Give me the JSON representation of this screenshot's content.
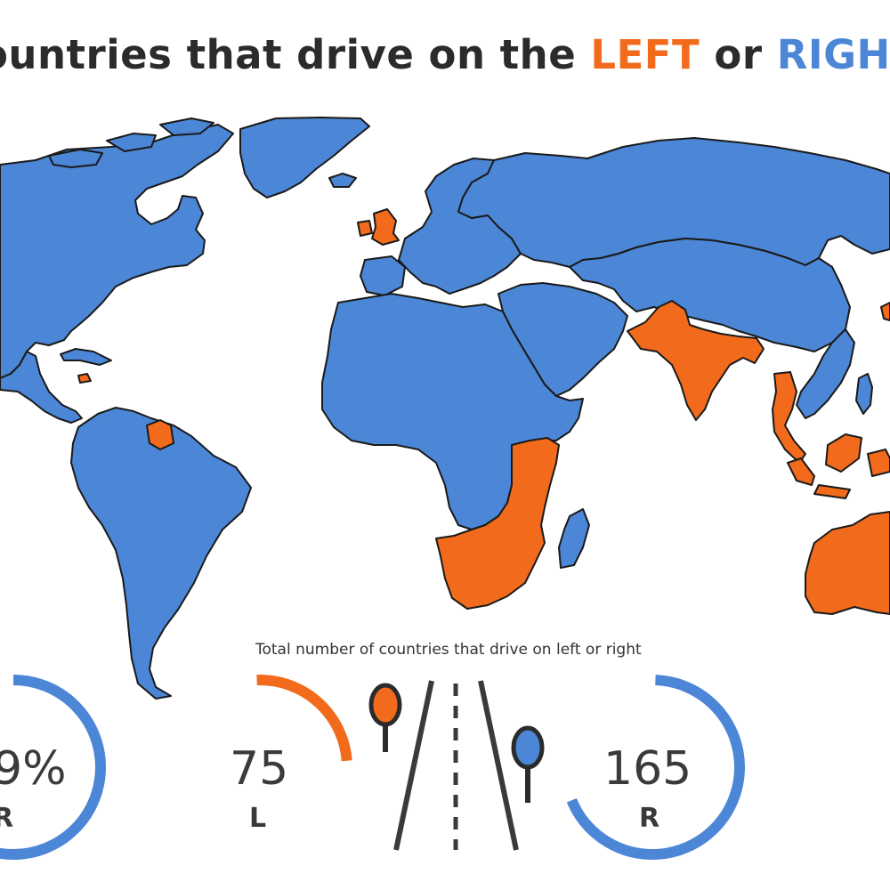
{
  "title": {
    "prefix": "ountries that drive on the ",
    "left_word": "LEFT",
    "middle": " or ",
    "right_word": "RIGH"
  },
  "colors": {
    "left": "#f26a1b",
    "right": "#4c86d6",
    "text": "#2b2b2b"
  },
  "stats": {
    "caption": "Total number of countries that drive on left or right",
    "right_percent_text": "9%",
    "right_percent_label": "R",
    "left_count": "75",
    "left_label": "L",
    "right_count": "165",
    "right_label": "R",
    "left_share": 0.31,
    "right_share": 0.69
  },
  "map": {
    "legend_meaning": {
      "left": "drive on left",
      "right": "drive on right"
    },
    "left_regions": [
      "United Kingdom",
      "Ireland",
      "India",
      "Pakistan",
      "Bangladesh",
      "Thailand",
      "Malaysia",
      "Indonesia",
      "Australia",
      "Japan",
      "Guyana",
      "Suriname",
      "Southern Africa",
      "East Africa",
      "Jamaica",
      "Papua New Guinea"
    ]
  },
  "icons": {
    "left_pin": "map-pin-left-icon",
    "right_pin": "map-pin-right-icon",
    "road": "road-icon"
  }
}
